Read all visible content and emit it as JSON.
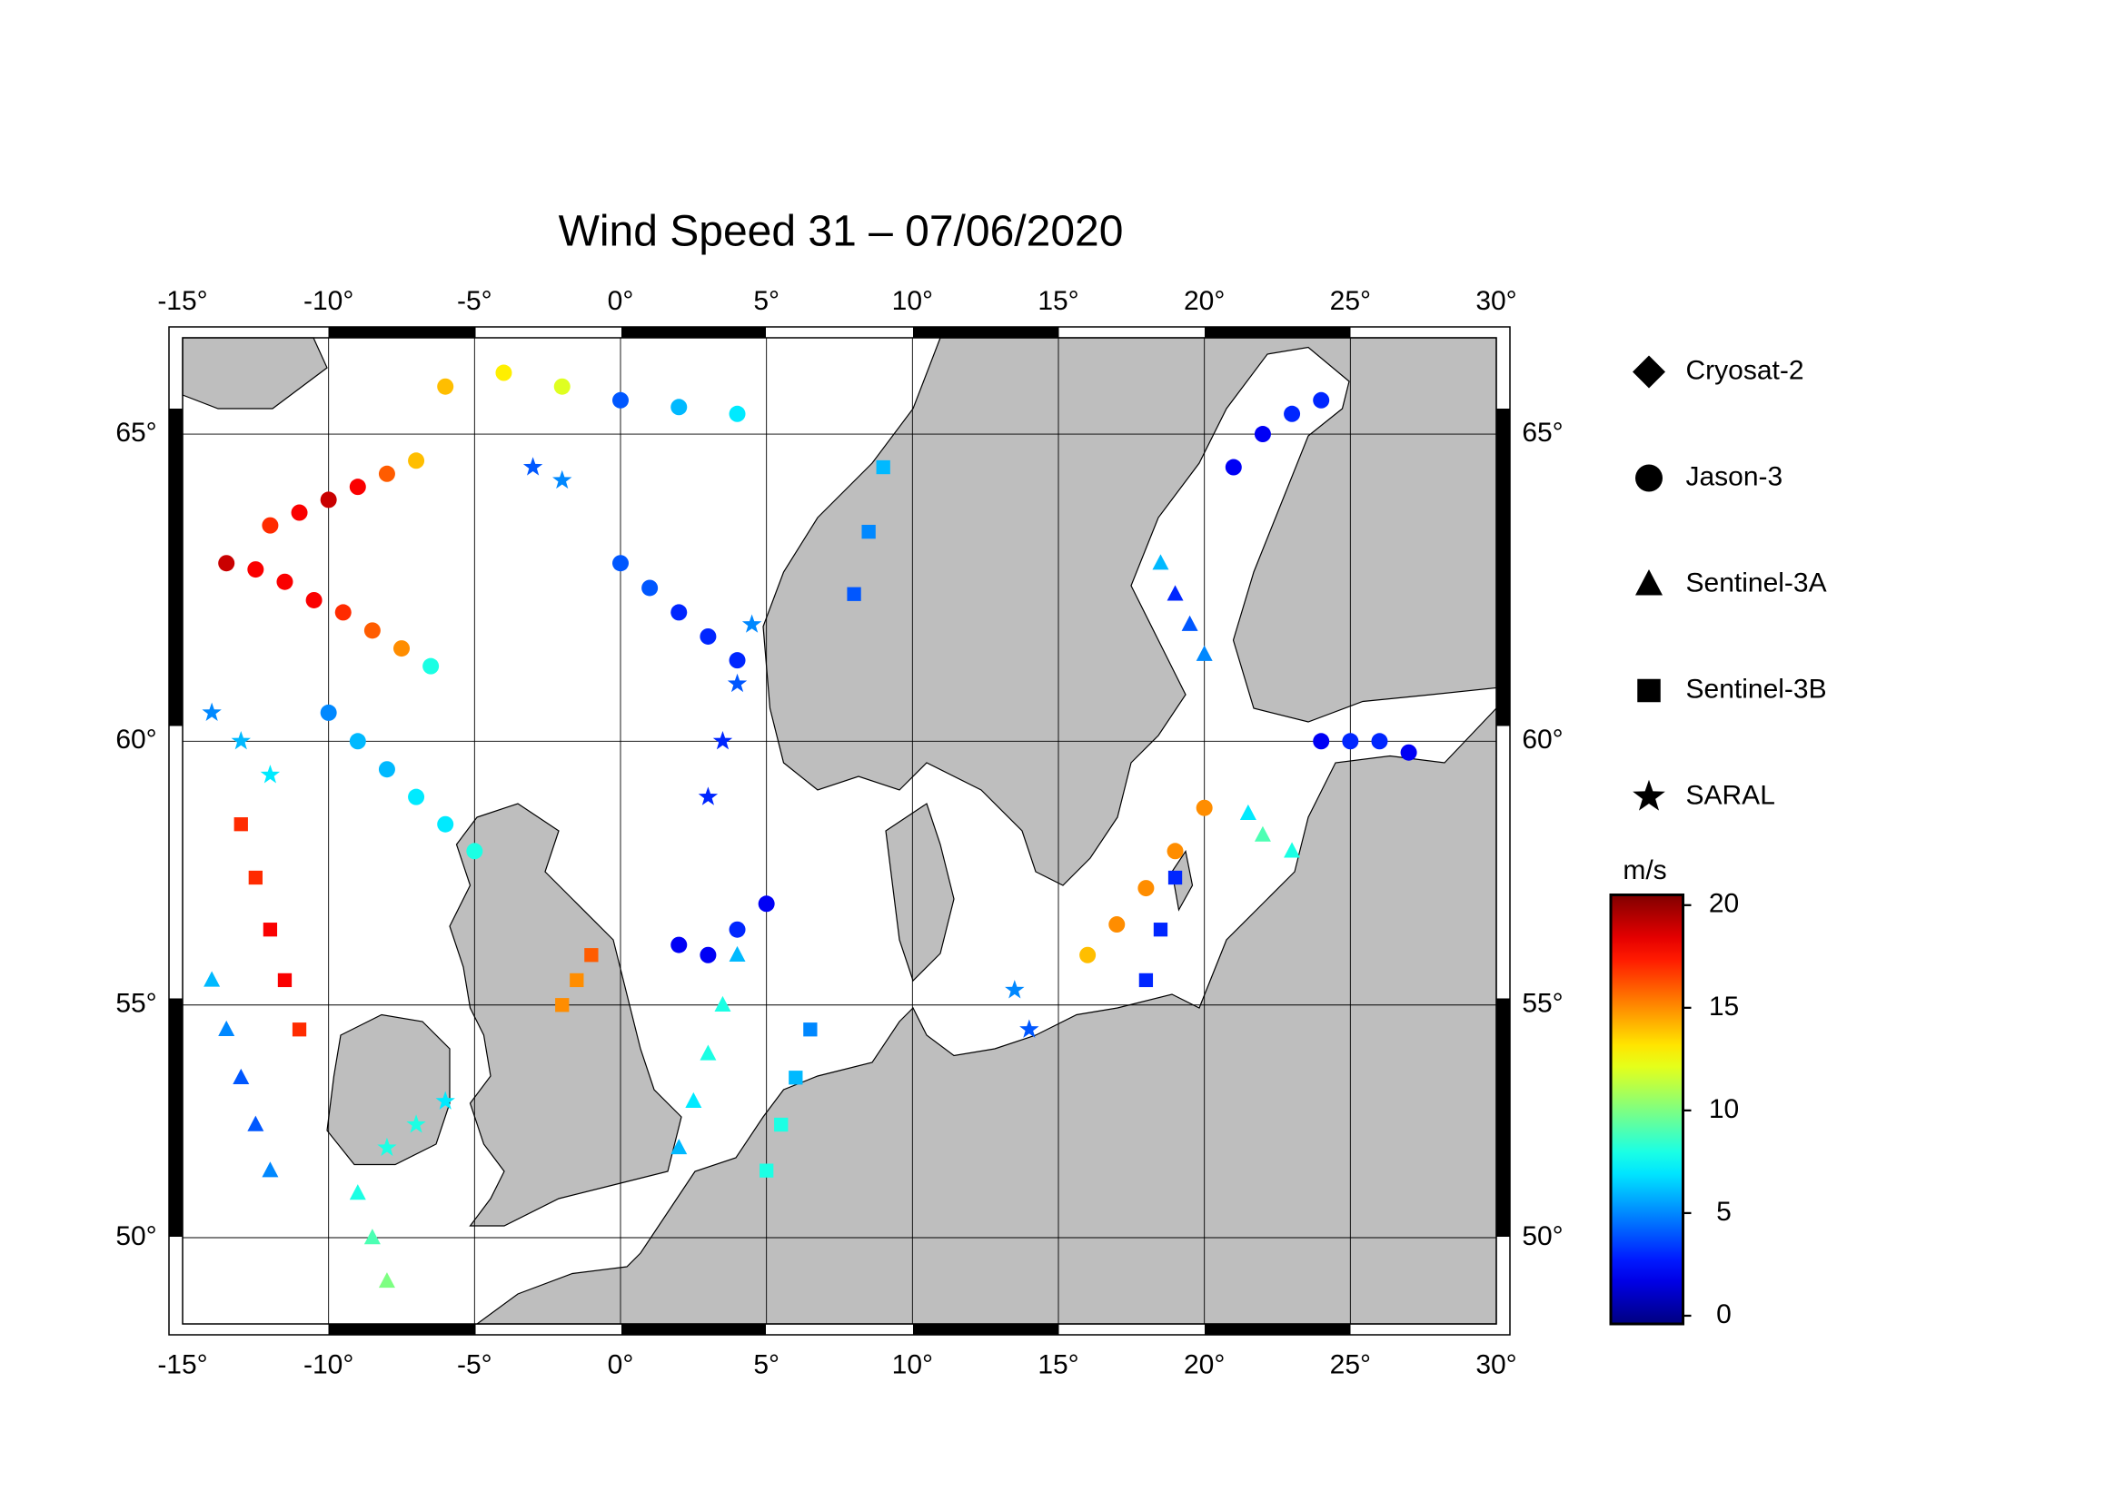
{
  "chart_data": {
    "type": "scatter",
    "title": "Wind Speed 31 – 07/06/2020",
    "xlim": [
      -15,
      30
    ],
    "ylim": [
      48,
      66.4
    ],
    "projection": "mercator",
    "grid": true,
    "xticks": [
      {
        "value": -15,
        "label": "-15°"
      },
      {
        "value": -10,
        "label": "-10°"
      },
      {
        "value": -5,
        "label": "-5°"
      },
      {
        "value": 0,
        "label": "0°"
      },
      {
        "value": 5,
        "label": "5°"
      },
      {
        "value": 10,
        "label": "10°"
      },
      {
        "value": 15,
        "label": "15°"
      },
      {
        "value": 20,
        "label": "20°"
      },
      {
        "value": 25,
        "label": "25°"
      },
      {
        "value": 30,
        "label": "30°"
      }
    ],
    "yticks": [
      {
        "value": 50,
        "label": "50°"
      },
      {
        "value": 55,
        "label": "55°"
      },
      {
        "value": 60,
        "label": "60°"
      },
      {
        "value": 65,
        "label": "65°"
      }
    ],
    "colorbar": {
      "label": "m/s",
      "colormap": "jet",
      "clim": [
        -0.4,
        20.5
      ],
      "ticks": [
        0,
        5,
        10,
        15,
        20
      ]
    },
    "series": [
      {
        "name": "Cryosat-2",
        "marker": "diamond",
        "x": [],
        "y": [],
        "values": []
      },
      {
        "name": "Jason-3",
        "marker": "circle",
        "x": [
          -13.5,
          -12.5,
          -11.5,
          -10.5,
          -9.5,
          -8.5,
          -7.5,
          -6.5,
          -12,
          -11,
          -10,
          -9,
          -8,
          -7,
          16,
          17,
          18,
          19,
          20,
          0,
          1,
          2,
          3,
          4,
          -10,
          -9,
          -8,
          -7,
          -6,
          -5,
          21,
          22,
          23,
          24,
          24,
          25,
          26,
          27,
          2,
          3,
          4,
          5,
          -6,
          -4,
          -2,
          0,
          2,
          4
        ],
        "y": [
          63.0,
          62.9,
          62.7,
          62.4,
          62.2,
          61.9,
          61.6,
          61.3,
          63.6,
          63.8,
          64.0,
          64.2,
          64.4,
          64.6,
          56.0,
          56.6,
          57.3,
          58.0,
          58.8,
          63.0,
          62.6,
          62.2,
          61.8,
          61.4,
          60.5,
          60.0,
          59.5,
          59.0,
          58.5,
          58.0,
          64.5,
          65.0,
          65.3,
          65.5,
          60.0,
          60.0,
          60.0,
          59.8,
          56.2,
          56.0,
          56.5,
          57.0,
          65.7,
          65.9,
          65.7,
          65.5,
          65.4,
          65.3
        ],
        "values": [
          19,
          18,
          18,
          18,
          17,
          16,
          15,
          8,
          17,
          18,
          19,
          18,
          16,
          14,
          14,
          15,
          15,
          15,
          15,
          4,
          4,
          3,
          3,
          3,
          5,
          6,
          6,
          7,
          7,
          8,
          2,
          2,
          3,
          3,
          2,
          3,
          3,
          2,
          2,
          2,
          3,
          2,
          14,
          13,
          12,
          4,
          6,
          7
        ]
      },
      {
        "name": "Sentinel-3A",
        "marker": "triangle",
        "x": [
          -14,
          -13.5,
          -13,
          -12.5,
          -12,
          2,
          2.5,
          3,
          3.5,
          4,
          19,
          19.5,
          20,
          18.5,
          22,
          23,
          21.5,
          -9,
          -8.5,
          -8
        ],
        "y": [
          55.5,
          54.5,
          53.5,
          52.5,
          51.5,
          52,
          53,
          54,
          55,
          56,
          62.5,
          62,
          61.5,
          63,
          58.3,
          58,
          58.7,
          51,
          50,
          49
        ],
        "values": [
          6,
          5,
          4,
          4,
          5,
          6,
          7,
          8,
          8,
          6,
          3,
          4,
          5,
          6,
          9,
          8,
          7,
          8,
          9,
          10
        ]
      },
      {
        "name": "Sentinel-3B",
        "marker": "square",
        "x": [
          -13,
          -12.5,
          -12,
          -11.5,
          -11,
          5,
          5.5,
          6,
          6.5,
          18,
          18.5,
          19,
          -1,
          -1.5,
          -2,
          9,
          8.5,
          8
        ],
        "y": [
          58.5,
          57.5,
          56.5,
          55.5,
          54.5,
          51.5,
          52.5,
          53.5,
          54.5,
          55.5,
          56.5,
          57.5,
          56,
          55.5,
          55,
          64.5,
          63.5,
          62.5
        ],
        "values": [
          17,
          17,
          18,
          18,
          17,
          8,
          8,
          6,
          5,
          3,
          3,
          3,
          16,
          15,
          15,
          6,
          5,
          4
        ]
      },
      {
        "name": "SARAL",
        "marker": "star",
        "x": [
          -14,
          -13,
          -12,
          3,
          3.5,
          4,
          4.5,
          -8,
          -7,
          -6,
          14,
          13.5,
          -3,
          -2
        ],
        "y": [
          60.5,
          60,
          59.4,
          59,
          60,
          61,
          62,
          52,
          52.5,
          53,
          54.5,
          55.3,
          64.5,
          64.3
        ],
        "values": [
          5,
          6,
          7,
          3,
          3,
          4,
          5,
          8,
          8,
          7,
          4,
          5,
          4,
          5
        ]
      }
    ]
  }
}
